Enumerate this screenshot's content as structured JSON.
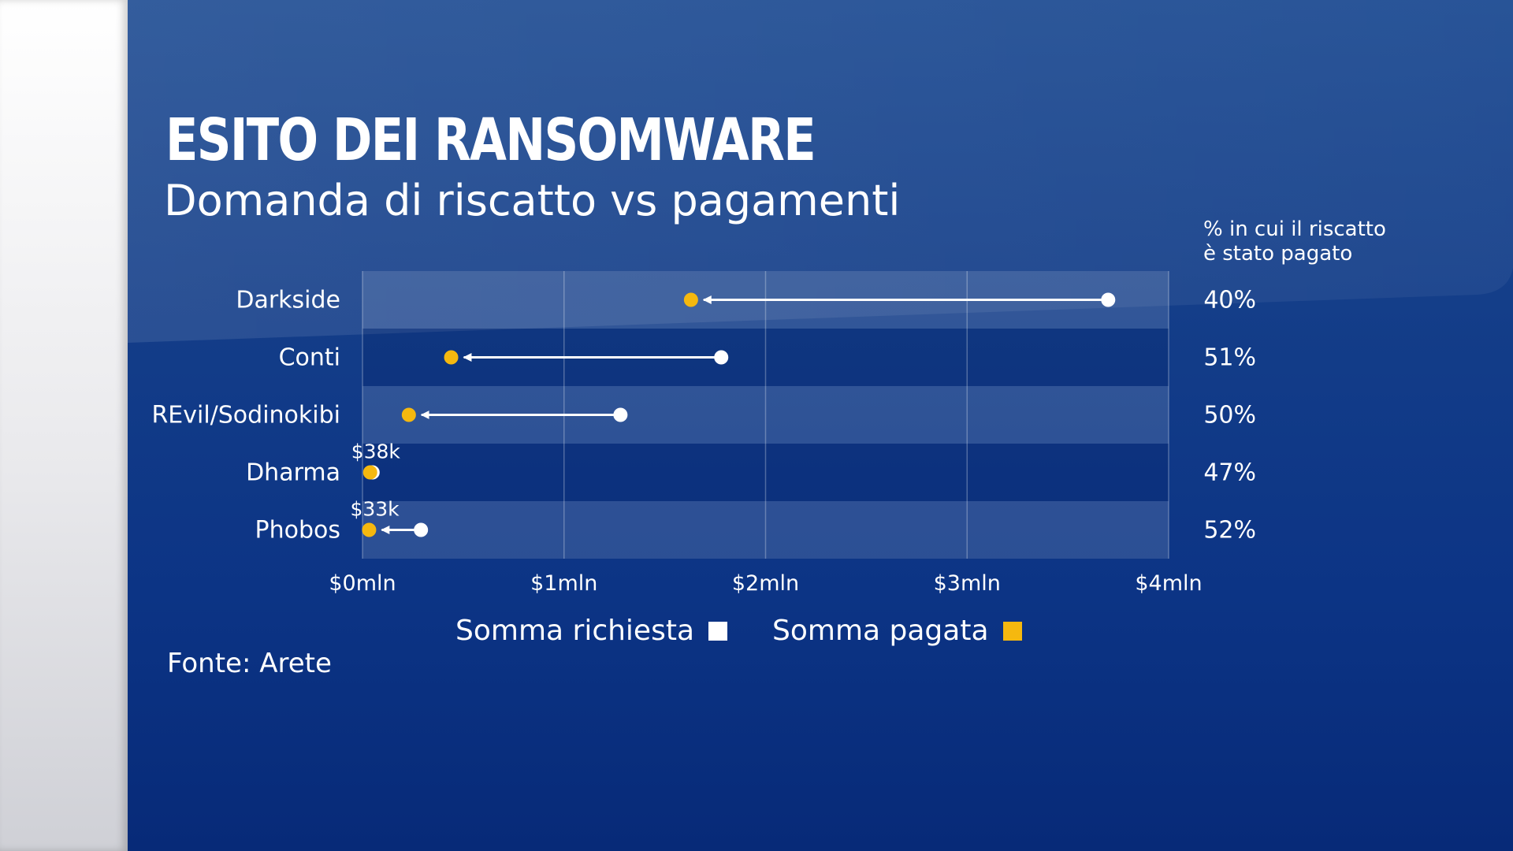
{
  "colors": {
    "background": "#0f3a86",
    "demanded": "#ffffff",
    "paid": "#f5b80f"
  },
  "legend": {
    "demanded_label": "Somma richiesta",
    "paid_label": "Somma pagata"
  },
  "source": "Fonte: Arete",
  "chart_data": {
    "type": "dot-arrow",
    "title": "ESITO DEI RANSOMWARE",
    "subtitle": "Domanda di riscatto vs pagamenti",
    "right_column_label": [
      "% in cui il riscatto",
      "è stato pagato"
    ],
    "xlim": [
      0,
      4
    ],
    "x_ticks": [
      {
        "value": 0,
        "label": "$0mln"
      },
      {
        "value": 1,
        "label": "$1mln"
      },
      {
        "value": 2,
        "label": "$2mln"
      },
      {
        "value": 3,
        "label": "$3mln"
      },
      {
        "value": 4,
        "label": "$4mln"
      }
    ],
    "grid": true,
    "categories": [
      "Darkside",
      "Conti",
      "REvil/Sodinokibi",
      "Dharma",
      "Phobos"
    ],
    "series": [
      {
        "name": "Somma richiesta",
        "values": [
          3.7,
          1.78,
          1.28,
          0.05,
          0.29
        ]
      },
      {
        "name": "Somma pagata",
        "values": [
          1.63,
          0.44,
          0.23,
          0.038,
          0.033
        ]
      }
    ],
    "paid_value_labels": [
      "",
      "",
      "",
      "$38k",
      "$33k"
    ],
    "paid_percent": [
      "40%",
      "51%",
      "50%",
      "47%",
      "52%"
    ]
  }
}
